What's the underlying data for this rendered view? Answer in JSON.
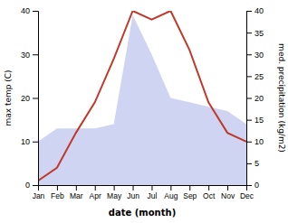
{
  "chart_data": {
    "type": "line",
    "categories": [
      "Jan",
      "Feb",
      "Mar",
      "Apr",
      "May",
      "Jun",
      "Jul",
      "Aug",
      "Sep",
      "Oct",
      "Nov",
      "Dec"
    ],
    "series": [
      {
        "type": "area",
        "color": "#c5cdf0",
        "axis": "y2",
        "values": [
          10,
          13,
          13,
          13,
          14,
          39,
          30,
          20,
          19,
          18,
          17,
          14
        ]
      },
      {
        "type": "line",
        "color": "#c0392b",
        "values": [
          1,
          4,
          12,
          19,
          29,
          40,
          38,
          40,
          31,
          19,
          12,
          10
        ]
      }
    ],
    "xlabel": "date (month)",
    "ylabel": "max temp (C)",
    "y2label": "med. precipitation (kg/m2)",
    "ylim": [
      0,
      40
    ],
    "yticks": [
      0,
      10,
      20,
      30,
      40
    ],
    "y2lim": [
      0,
      40
    ],
    "y2ticks": [
      0,
      5,
      10,
      15,
      20,
      25,
      30,
      35,
      40
    ]
  }
}
